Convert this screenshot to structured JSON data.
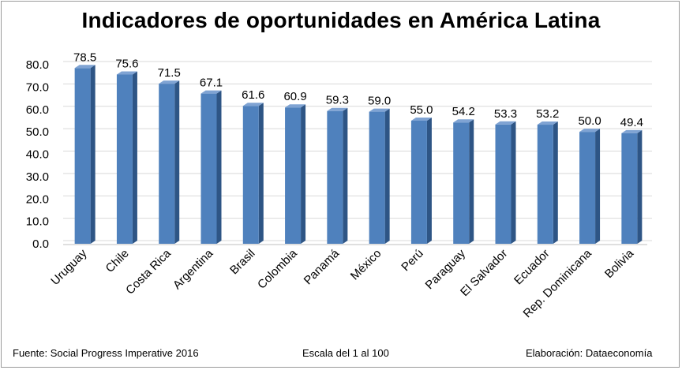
{
  "chart_data": {
    "type": "bar",
    "title": "Indicadores de oportunidades en América Latina",
    "categories": [
      "Uruguay",
      "Chile",
      "Costa Rica",
      "Argentina",
      "Brasil",
      "Colombia",
      "Panamá",
      "México",
      "Perú",
      "Paraguay",
      "El Salvador",
      "Ecuador",
      "Rep. Dominicana",
      "Bolivia"
    ],
    "values": [
      78.5,
      75.6,
      71.5,
      67.1,
      61.6,
      60.9,
      59.3,
      59.0,
      55.0,
      54.2,
      53.3,
      53.2,
      50.0,
      49.4
    ],
    "value_labels": [
      "78.5",
      "75.6",
      "71.5",
      "67.1",
      "61.6",
      "60.9",
      "59.3",
      "59.0",
      "55.0",
      "54.2",
      "53.3",
      "53.2",
      "50.0",
      "49.4"
    ],
    "ylim": [
      0,
      80
    ],
    "yticks": [
      "0.0",
      "10.0",
      "20.0",
      "30.0",
      "40.0",
      "50.0",
      "60.0",
      "70.0",
      "80.0"
    ],
    "grid": true,
    "legend": "none",
    "colors": {
      "front": "#4F81BD",
      "side": "#2E5585",
      "top": "#7FA3D3",
      "grid": "#d9d9d9"
    }
  },
  "footer": {
    "source": "Fuente: Social Progress Imperative 2016",
    "scale": "Escala del 1 al 100",
    "credit": "Elaboración: Dataeconomía"
  }
}
